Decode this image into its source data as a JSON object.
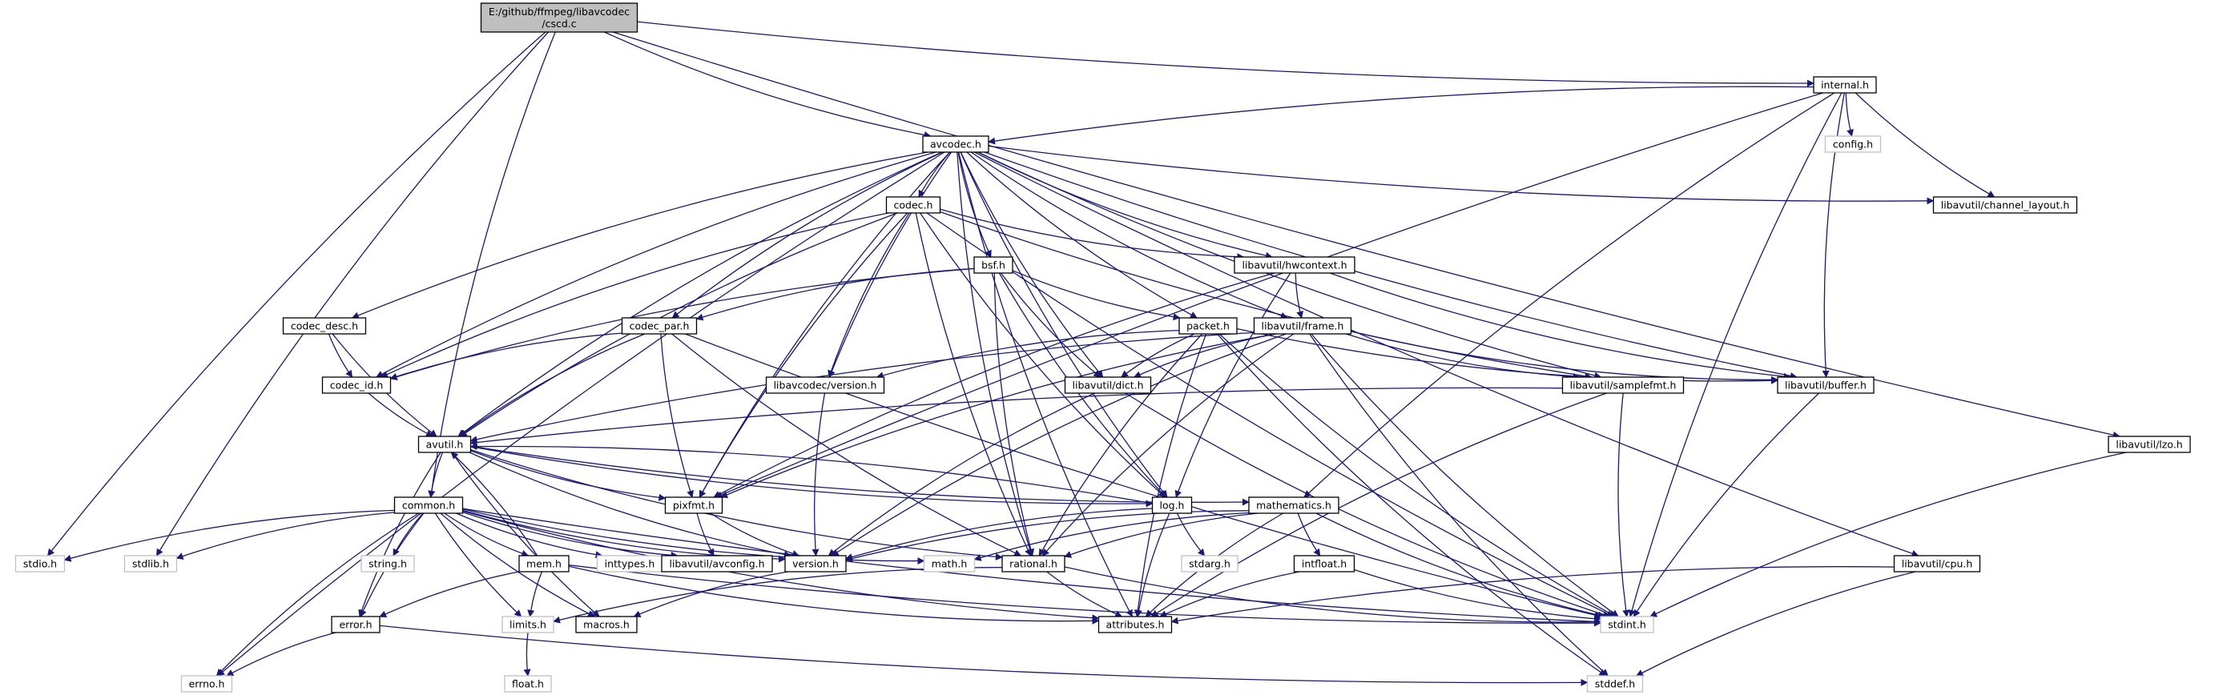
{
  "root_file": [
    "E:/github/ffmpeg/libavcodec",
    "/cscd.c"
  ],
  "colors": {
    "edge": "#191970",
    "root_fill": "#bfbfbf",
    "system_border": "#bfbfbf",
    "node_border": "#000000"
  },
  "nodes": [
    {
      "id": "cscd",
      "label": "E:/github/ffmpeg/libavcodec /cscd.c",
      "kind": "root"
    },
    {
      "id": "internal_h",
      "label": "internal.h",
      "kind": "local"
    },
    {
      "id": "config_h",
      "label": "config.h",
      "kind": "system"
    },
    {
      "id": "avcodec_h",
      "label": "avcodec.h",
      "kind": "local"
    },
    {
      "id": "codec_h",
      "label": "codec.h",
      "kind": "local"
    },
    {
      "id": "channel_layout_h",
      "label": "libavutil/channel_layout.h",
      "kind": "local"
    },
    {
      "id": "hwcontext_h",
      "label": "libavutil/hwcontext.h",
      "kind": "local"
    },
    {
      "id": "bsf_h",
      "label": "bsf.h",
      "kind": "local"
    },
    {
      "id": "frame_h",
      "label": "libavutil/frame.h",
      "kind": "local"
    },
    {
      "id": "codec_desc_h",
      "label": "codec_desc.h",
      "kind": "local"
    },
    {
      "id": "codec_par_h",
      "label": "codec_par.h",
      "kind": "local"
    },
    {
      "id": "packet_h",
      "label": "packet.h",
      "kind": "local"
    },
    {
      "id": "codec_id_h",
      "label": "codec_id.h",
      "kind": "local"
    },
    {
      "id": "lavc_version_h",
      "label": "libavcodec/version.h",
      "kind": "local"
    },
    {
      "id": "dict_h",
      "label": "libavutil/dict.h",
      "kind": "local"
    },
    {
      "id": "samplefmt_h",
      "label": "libavutil/samplefmt.h",
      "kind": "local"
    },
    {
      "id": "buffer_h",
      "label": "libavutil/buffer.h",
      "kind": "local"
    },
    {
      "id": "lzo_h",
      "label": "libavutil/lzo.h",
      "kind": "local"
    },
    {
      "id": "avutil_h",
      "label": "avutil.h",
      "kind": "local"
    },
    {
      "id": "common_h",
      "label": "common.h",
      "kind": "local"
    },
    {
      "id": "pixfmt_h",
      "label": "pixfmt.h",
      "kind": "local"
    },
    {
      "id": "log_h",
      "label": "log.h",
      "kind": "local"
    },
    {
      "id": "mathematics_h",
      "label": "mathematics.h",
      "kind": "local"
    },
    {
      "id": "stdio_h",
      "label": "stdio.h",
      "kind": "system"
    },
    {
      "id": "stdlib_h",
      "label": "stdlib.h",
      "kind": "system"
    },
    {
      "id": "inttypes_h",
      "label": "inttypes.h",
      "kind": "system"
    },
    {
      "id": "string_h",
      "label": "string.h",
      "kind": "system"
    },
    {
      "id": "avconfig_h",
      "label": "libavutil/avconfig.h",
      "kind": "local"
    },
    {
      "id": "version_h",
      "label": "version.h",
      "kind": "local"
    },
    {
      "id": "math_h",
      "label": "math.h",
      "kind": "system"
    },
    {
      "id": "rational_h",
      "label": "rational.h",
      "kind": "local"
    },
    {
      "id": "stdarg_h",
      "label": "stdarg.h",
      "kind": "system"
    },
    {
      "id": "intfloat_h",
      "label": "intfloat.h",
      "kind": "local"
    },
    {
      "id": "cpu_h",
      "label": "libavutil/cpu.h",
      "kind": "local"
    },
    {
      "id": "mem_h",
      "label": "mem.h",
      "kind": "local"
    },
    {
      "id": "error_h",
      "label": "error.h",
      "kind": "local"
    },
    {
      "id": "limits_h",
      "label": "limits.h",
      "kind": "system"
    },
    {
      "id": "macros_h",
      "label": "macros.h",
      "kind": "local"
    },
    {
      "id": "attributes_h",
      "label": "attributes.h",
      "kind": "local"
    },
    {
      "id": "stdint_h",
      "label": "stdint.h",
      "kind": "system"
    },
    {
      "id": "errno_h",
      "label": "errno.h",
      "kind": "system"
    },
    {
      "id": "float_h",
      "label": "float.h",
      "kind": "system"
    },
    {
      "id": "stddef_h",
      "label": "stddef.h",
      "kind": "system"
    }
  ],
  "edges": [
    [
      "cscd",
      "internal_h"
    ],
    [
      "cscd",
      "avcodec_h"
    ],
    [
      "cscd",
      "stdio_h"
    ],
    [
      "cscd",
      "stdlib_h"
    ],
    [
      "cscd",
      "common_h"
    ],
    [
      "cscd",
      "lzo_h"
    ],
    [
      "internal_h",
      "config_h"
    ],
    [
      "internal_h",
      "avcodec_h"
    ],
    [
      "internal_h",
      "channel_layout_h"
    ],
    [
      "internal_h",
      "buffer_h"
    ],
    [
      "internal_h",
      "mathematics_h"
    ],
    [
      "internal_h",
      "pixfmt_h"
    ],
    [
      "internal_h",
      "stdint_h"
    ],
    [
      "avcodec_h",
      "codec_h"
    ],
    [
      "avcodec_h",
      "channel_layout_h"
    ],
    [
      "avcodec_h",
      "hwcontext_h"
    ],
    [
      "avcodec_h",
      "bsf_h"
    ],
    [
      "avcodec_h",
      "frame_h"
    ],
    [
      "avcodec_h",
      "codec_desc_h"
    ],
    [
      "avcodec_h",
      "codec_par_h"
    ],
    [
      "avcodec_h",
      "packet_h"
    ],
    [
      "avcodec_h",
      "codec_id_h"
    ],
    [
      "avcodec_h",
      "lavc_version_h"
    ],
    [
      "avcodec_h",
      "dict_h"
    ],
    [
      "avcodec_h",
      "samplefmt_h"
    ],
    [
      "avcodec_h",
      "buffer_h"
    ],
    [
      "avcodec_h",
      "avutil_h"
    ],
    [
      "avcodec_h",
      "pixfmt_h"
    ],
    [
      "avcodec_h",
      "log_h"
    ],
    [
      "avcodec_h",
      "attributes_h"
    ],
    [
      "avcodec_h",
      "rational_h"
    ],
    [
      "avcodec_h",
      "errno_h"
    ],
    [
      "avcodec_h",
      "cpu_h"
    ],
    [
      "codec_h",
      "hwcontext_h"
    ],
    [
      "codec_h",
      "codec_id_h"
    ],
    [
      "codec_h",
      "lavc_version_h"
    ],
    [
      "codec_h",
      "avutil_h"
    ],
    [
      "codec_h",
      "pixfmt_h"
    ],
    [
      "codec_h",
      "rational_h"
    ],
    [
      "codec_h",
      "log_h"
    ],
    [
      "codec_h",
      "samplefmt_h"
    ],
    [
      "codec_h",
      "stdint_h"
    ],
    [
      "hwcontext_h",
      "frame_h"
    ],
    [
      "hwcontext_h",
      "buffer_h"
    ],
    [
      "hwcontext_h",
      "pixfmt_h"
    ],
    [
      "hwcontext_h",
      "log_h"
    ],
    [
      "bsf_h",
      "codec_id_h"
    ],
    [
      "bsf_h",
      "codec_par_h"
    ],
    [
      "bsf_h",
      "packet_h"
    ],
    [
      "bsf_h",
      "dict_h"
    ],
    [
      "bsf_h",
      "log_h"
    ],
    [
      "bsf_h",
      "rational_h"
    ],
    [
      "frame_h",
      "avutil_h"
    ],
    [
      "frame_h",
      "buffer_h"
    ],
    [
      "frame_h",
      "dict_h"
    ],
    [
      "frame_h",
      "samplefmt_h"
    ],
    [
      "frame_h",
      "pixfmt_h"
    ],
    [
      "frame_h",
      "rational_h"
    ],
    [
      "frame_h",
      "version_h"
    ],
    [
      "frame_h",
      "stddef_h"
    ],
    [
      "frame_h",
      "stdint_h"
    ],
    [
      "codec_desc_h",
      "codec_id_h"
    ],
    [
      "codec_desc_h",
      "avutil_h"
    ],
    [
      "codec_par_h",
      "codec_id_h"
    ],
    [
      "codec_par_h",
      "avutil_h"
    ],
    [
      "codec_par_h",
      "pixfmt_h"
    ],
    [
      "codec_par_h",
      "rational_h"
    ],
    [
      "codec_par_h",
      "stdint_h"
    ],
    [
      "packet_h",
      "lavc_version_h"
    ],
    [
      "packet_h",
      "buffer_h"
    ],
    [
      "packet_h",
      "dict_h"
    ],
    [
      "packet_h",
      "attributes_h"
    ],
    [
      "packet_h",
      "rational_h"
    ],
    [
      "packet_h",
      "stddef_h"
    ],
    [
      "packet_h",
      "stdint_h"
    ],
    [
      "codec_id_h",
      "avutil_h"
    ],
    [
      "lavc_version_h",
      "version_h"
    ],
    [
      "dict_h",
      "version_h"
    ],
    [
      "dict_h",
      "stdint_h"
    ],
    [
      "samplefmt_h",
      "avutil_h"
    ],
    [
      "samplefmt_h",
      "attributes_h"
    ],
    [
      "samplefmt_h",
      "stdint_h"
    ],
    [
      "buffer_h",
      "stdint_h"
    ],
    [
      "lzo_h",
      "stdint_h"
    ],
    [
      "avutil_h",
      "common_h"
    ],
    [
      "avutil_h",
      "pixfmt_h"
    ],
    [
      "avutil_h",
      "log_h"
    ],
    [
      "avutil_h",
      "version_h"
    ],
    [
      "avutil_h",
      "rational_h"
    ],
    [
      "avutil_h",
      "macros_h"
    ],
    [
      "avutil_h",
      "error_h"
    ],
    [
      "avutil_h",
      "mathematics_h"
    ],
    [
      "common_h",
      "stdio_h"
    ],
    [
      "common_h",
      "stdlib_h"
    ],
    [
      "common_h",
      "inttypes_h"
    ],
    [
      "common_h",
      "string_h"
    ],
    [
      "common_h",
      "avconfig_h"
    ],
    [
      "common_h",
      "math_h"
    ],
    [
      "common_h",
      "mem_h"
    ],
    [
      "common_h",
      "error_h"
    ],
    [
      "common_h",
      "limits_h"
    ],
    [
      "common_h",
      "macros_h"
    ],
    [
      "common_h",
      "attributes_h"
    ],
    [
      "common_h",
      "version_h"
    ],
    [
      "common_h",
      "stdint_h"
    ],
    [
      "common_h",
      "errno_h"
    ],
    [
      "pixfmt_h",
      "avconfig_h"
    ],
    [
      "pixfmt_h",
      "version_h"
    ],
    [
      "log_h",
      "avutil_h"
    ],
    [
      "log_h",
      "version_h"
    ],
    [
      "log_h",
      "stdarg_h"
    ],
    [
      "log_h",
      "attributes_h"
    ],
    [
      "mathematics_h",
      "version_h"
    ],
    [
      "mathematics_h",
      "rational_h"
    ],
    [
      "mathematics_h",
      "intfloat_h"
    ],
    [
      "mathematics_h",
      "attributes_h"
    ],
    [
      "mathematics_h",
      "math_h"
    ],
    [
      "mathematics_h",
      "stdint_h"
    ],
    [
      "rational_h",
      "attributes_h"
    ],
    [
      "rational_h",
      "limits_h"
    ],
    [
      "rational_h",
      "stdint_h"
    ],
    [
      "intfloat_h",
      "attributes_h"
    ],
    [
      "intfloat_h",
      "stdint_h"
    ],
    [
      "cpu_h",
      "attributes_h"
    ],
    [
      "cpu_h",
      "stddef_h"
    ],
    [
      "mem_h",
      "error_h"
    ],
    [
      "mem_h",
      "limits_h"
    ],
    [
      "mem_h",
      "attributes_h"
    ],
    [
      "mem_h",
      "avutil_h"
    ],
    [
      "mem_h",
      "stdint_h"
    ],
    [
      "error_h",
      "errno_h"
    ],
    [
      "error_h",
      "stddef_h"
    ],
    [
      "version_h",
      "macros_h"
    ],
    [
      "limits_h",
      "float_h"
    ]
  ]
}
